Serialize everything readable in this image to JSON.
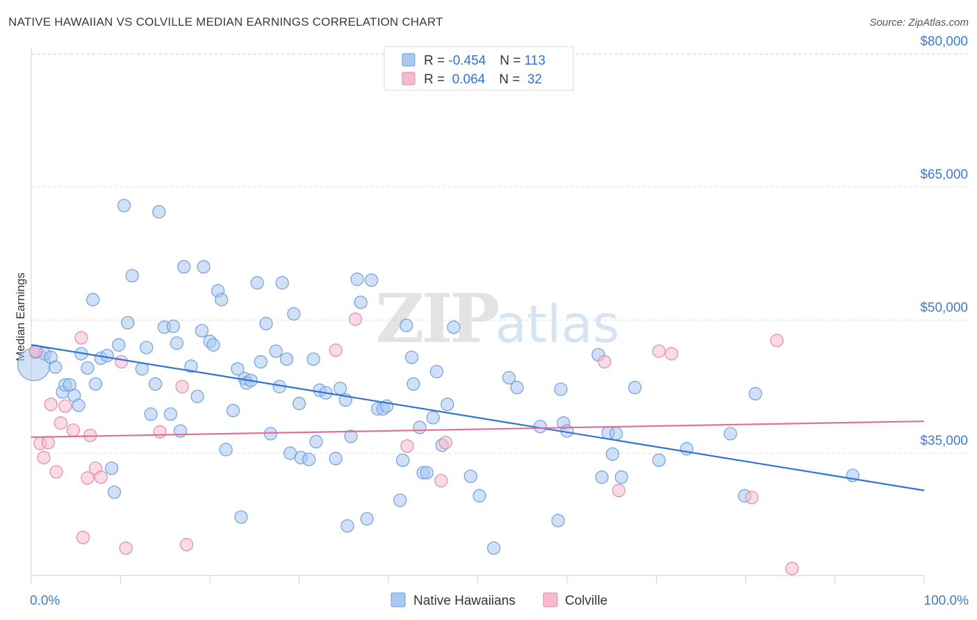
{
  "header": {
    "title": "NATIVE HAWAIIAN VS COLVILLE MEDIAN EARNINGS CORRELATION CHART",
    "source": "Source: ZipAtlas.com"
  },
  "watermark": {
    "zip": "ZIP",
    "atlas": "atlas"
  },
  "colors": {
    "blue_fill": "#aac7ef",
    "blue_stroke": "#6f9fdc",
    "blue_line": "#2e73d1",
    "pink_fill": "#f5bccd",
    "pink_stroke": "#e48aa6",
    "pink_line": "#e0709a",
    "tick_text": "#3d7bd0",
    "grid": "#dcdcdc"
  },
  "chart_data": {
    "type": "scatter",
    "title": "NATIVE HAWAIIAN VS COLVILLE MEDIAN EARNINGS CORRELATION CHART",
    "xlabel": "",
    "ylabel": "Median Earnings",
    "xlim": [
      0,
      100
    ],
    "ylim": [
      20000,
      82000
    ],
    "x_tick_labels": [
      "0.0%",
      "100.0%"
    ],
    "y_ticks": [
      35000,
      50000,
      65000,
      80000
    ],
    "y_tick_labels": [
      "$35,000",
      "$50,000",
      "$65,000",
      "$80,000"
    ],
    "grid": "horizontal dashed",
    "legend_top": {
      "rows": [
        {
          "r_label": "R = ",
          "r_value": "-0.454",
          "n_label": "N = ",
          "n_value": "113"
        },
        {
          "r_label": "R = ",
          "r_value": " 0.064",
          "n_label": "N = ",
          "n_value": " 32"
        }
      ]
    },
    "legend_bottom": [
      "Native Hawaiians",
      "Colville"
    ],
    "series": [
      {
        "name": "Native Hawaiians",
        "color": "#aac7ef",
        "trend": {
          "x": [
            0,
            100
          ],
          "y": [
            47200,
            30800
          ]
        },
        "points": [
          [
            0.3,
            45000,
            2.6
          ],
          [
            0.5,
            46400,
            1
          ],
          [
            1.5,
            46200,
            1
          ],
          [
            2.2,
            45800,
            1
          ],
          [
            2.7,
            44700,
            1
          ],
          [
            3.5,
            41900,
            1
          ],
          [
            3.8,
            42700,
            1
          ],
          [
            4.3,
            42700,
            1
          ],
          [
            4.8,
            41500,
            1
          ],
          [
            5.3,
            40400,
            1
          ],
          [
            5.6,
            46200,
            1
          ],
          [
            6.3,
            44600,
            1
          ],
          [
            6.9,
            52300,
            1
          ],
          [
            7.2,
            42800,
            1
          ],
          [
            7.8,
            45700,
            1
          ],
          [
            8.5,
            46000,
            1
          ],
          [
            9.0,
            33300,
            1
          ],
          [
            9.3,
            30600,
            1
          ],
          [
            9.8,
            47200,
            1
          ],
          [
            10.4,
            62900,
            1
          ],
          [
            10.8,
            49700,
            1
          ],
          [
            11.3,
            55000,
            1
          ],
          [
            12.4,
            44500,
            1
          ],
          [
            12.9,
            46900,
            1
          ],
          [
            13.4,
            39400,
            1
          ],
          [
            13.9,
            42800,
            1
          ],
          [
            14.3,
            62200,
            1
          ],
          [
            14.9,
            49200,
            1
          ],
          [
            15.6,
            39400,
            1
          ],
          [
            15.9,
            49300,
            1
          ],
          [
            16.3,
            47400,
            1
          ],
          [
            16.7,
            37500,
            1
          ],
          [
            17.1,
            56000,
            1
          ],
          [
            17.9,
            44800,
            1
          ],
          [
            18.6,
            41400,
            1
          ],
          [
            19.1,
            48800,
            1
          ],
          [
            19.3,
            56000,
            1
          ],
          [
            20.0,
            47600,
            1
          ],
          [
            20.4,
            47200,
            1
          ],
          [
            20.9,
            53300,
            1
          ],
          [
            21.3,
            52300,
            1
          ],
          [
            21.8,
            35400,
            1
          ],
          [
            22.6,
            39800,
            1
          ],
          [
            23.1,
            44500,
            1
          ],
          [
            23.5,
            27800,
            1
          ],
          [
            23.9,
            43400,
            1
          ],
          [
            24.1,
            42900,
            1
          ],
          [
            24.6,
            43200,
            1
          ],
          [
            25.3,
            54200,
            1
          ],
          [
            25.7,
            45300,
            1
          ],
          [
            26.3,
            49600,
            1
          ],
          [
            26.8,
            37200,
            1
          ],
          [
            27.4,
            46500,
            1
          ],
          [
            27.8,
            42500,
            1
          ],
          [
            28.1,
            54200,
            1
          ],
          [
            28.6,
            45600,
            1
          ],
          [
            29.0,
            35000,
            1
          ],
          [
            29.4,
            50700,
            1
          ],
          [
            30.0,
            40600,
            1
          ],
          [
            30.2,
            34500,
            1
          ],
          [
            31.1,
            34300,
            1
          ],
          [
            31.6,
            45600,
            1
          ],
          [
            31.9,
            36300,
            1
          ],
          [
            32.3,
            42100,
            1
          ],
          [
            33.0,
            41800,
            1
          ],
          [
            34.1,
            34400,
            1
          ],
          [
            34.6,
            42300,
            1
          ],
          [
            35.2,
            41000,
            1
          ],
          [
            35.4,
            26800,
            1
          ],
          [
            35.8,
            36900,
            1
          ],
          [
            36.5,
            54600,
            1
          ],
          [
            36.9,
            52000,
            1
          ],
          [
            37.6,
            27600,
            1
          ],
          [
            38.1,
            54500,
            1
          ],
          [
            38.8,
            40000,
            1
          ],
          [
            39.4,
            40000,
            1
          ],
          [
            39.8,
            40300,
            1
          ],
          [
            41.3,
            29700,
            1
          ],
          [
            41.6,
            34200,
            1
          ],
          [
            42.0,
            49400,
            1
          ],
          [
            42.6,
            45800,
            1
          ],
          [
            42.8,
            42800,
            1
          ],
          [
            43.5,
            37900,
            1
          ],
          [
            43.9,
            32800,
            1
          ],
          [
            44.3,
            32800,
            1
          ],
          [
            45.0,
            39000,
            1
          ],
          [
            45.4,
            44200,
            1
          ],
          [
            46.0,
            35900,
            1
          ],
          [
            46.6,
            40500,
            1
          ],
          [
            47.3,
            49200,
            1
          ],
          [
            49.2,
            32400,
            1
          ],
          [
            50.2,
            30200,
            1
          ],
          [
            51.8,
            24300,
            1
          ],
          [
            53.5,
            43500,
            1
          ],
          [
            54.4,
            42400,
            1
          ],
          [
            57.0,
            38000,
            1
          ],
          [
            59.0,
            27400,
            1
          ],
          [
            59.3,
            42200,
            1
          ],
          [
            59.6,
            38400,
            1
          ],
          [
            60.0,
            37500,
            1
          ],
          [
            63.5,
            46100,
            1
          ],
          [
            63.9,
            32300,
            1
          ],
          [
            64.6,
            37300,
            1
          ],
          [
            65.1,
            34900,
            1
          ],
          [
            65.5,
            37200,
            1
          ],
          [
            66.1,
            32300,
            1
          ],
          [
            67.6,
            42400,
            1
          ],
          [
            70.3,
            34200,
            1
          ],
          [
            73.4,
            35500,
            1
          ],
          [
            78.3,
            37200,
            1
          ],
          [
            79.9,
            30200,
            1
          ],
          [
            81.1,
            41700,
            1
          ],
          [
            92.0,
            32500,
            1
          ]
        ]
      },
      {
        "name": "Colville",
        "color": "#f5bccd",
        "trend": {
          "x": [
            0,
            100
          ],
          "y": [
            36800,
            38600
          ]
        },
        "points": [
          [
            0.5,
            46500,
            1
          ],
          [
            1.0,
            36100,
            1
          ],
          [
            1.4,
            34500,
            1
          ],
          [
            1.9,
            36200,
            1
          ],
          [
            2.2,
            40500,
            1
          ],
          [
            2.8,
            32900,
            1
          ],
          [
            3.3,
            38400,
            1
          ],
          [
            3.8,
            40300,
            1
          ],
          [
            4.7,
            37600,
            1
          ],
          [
            5.6,
            48000,
            1
          ],
          [
            5.8,
            25500,
            1
          ],
          [
            6.3,
            32200,
            1
          ],
          [
            6.6,
            37000,
            1
          ],
          [
            7.2,
            33300,
            1
          ],
          [
            7.8,
            32300,
            1
          ],
          [
            10.1,
            45300,
            1
          ],
          [
            10.6,
            24300,
            1
          ],
          [
            14.4,
            37400,
            1
          ],
          [
            16.9,
            42500,
            1
          ],
          [
            17.4,
            24700,
            1
          ],
          [
            36.3,
            50100,
            1
          ],
          [
            34.1,
            46600,
            1
          ],
          [
            42.1,
            35800,
            1
          ],
          [
            45.9,
            31900,
            1
          ],
          [
            46.4,
            36200,
            1
          ],
          [
            64.2,
            45300,
            1
          ],
          [
            65.8,
            30800,
            1
          ],
          [
            70.3,
            46500,
            1
          ],
          [
            71.7,
            46200,
            1
          ],
          [
            80.7,
            30000,
            1
          ],
          [
            83.5,
            47700,
            1
          ],
          [
            85.2,
            22000,
            1
          ]
        ]
      }
    ]
  },
  "y_axis": {
    "label": "Median Earnings"
  },
  "x_axis": {
    "min_label": "0.0%",
    "max_label": "100.0%"
  }
}
